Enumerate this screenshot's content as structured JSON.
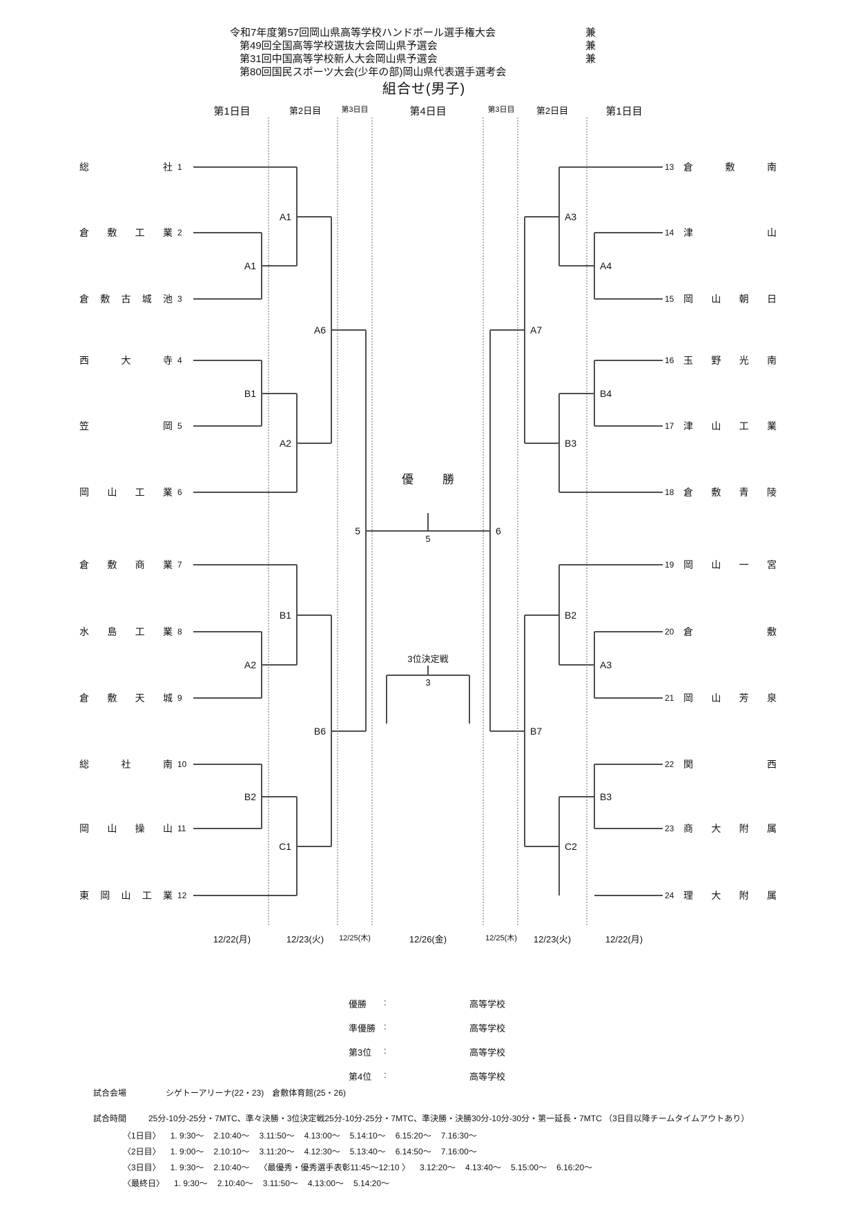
{
  "title": {
    "lines": [
      {
        "text": "令和7年度第57回岡山県高等学校ハンドボール選手権大会",
        "suffix": "兼"
      },
      {
        "text": "第49回全国高等学校選抜大会岡山県予選会",
        "suffix": "兼"
      },
      {
        "text": "第31回中国高等学校新人大会岡山県予選会",
        "suffix": "兼"
      },
      {
        "text": "第80回国民スポーツ大会(少年の部)岡山県代表選手選考会",
        "suffix": ""
      }
    ],
    "subtitle": "組合せ(男子)"
  },
  "round_headers": [
    "第1日目",
    "第2日目",
    "第3日目",
    "第4日目",
    "第3日目",
    "第2日目",
    "第1日目"
  ],
  "dates": [
    "12/22(月)",
    "12/23(火)",
    "12/25(木)",
    "12/26(金)",
    "12/25(木)",
    "12/23(火)",
    "12/22(月)"
  ],
  "teams": [
    {
      "no": "1",
      "name": "総社",
      "side": "L",
      "row": 0,
      "entry": 2
    },
    {
      "no": "2",
      "name": "倉敷工業",
      "side": "L",
      "row": 1,
      "entry": 1
    },
    {
      "no": "3",
      "name": "倉敷古城池",
      "side": "L",
      "row": 2,
      "entry": 1
    },
    {
      "no": "4",
      "name": "西大寺",
      "side": "L",
      "row": 3,
      "entry": 1
    },
    {
      "no": "5",
      "name": "笠岡",
      "side": "L",
      "row": 4,
      "entry": 1
    },
    {
      "no": "6",
      "name": "岡山工業",
      "side": "L",
      "row": 5,
      "entry": 2
    },
    {
      "no": "7",
      "name": "倉敷商業",
      "side": "L",
      "row": 6,
      "entry": 2
    },
    {
      "no": "8",
      "name": "水島工業",
      "side": "L",
      "row": 7,
      "entry": 1
    },
    {
      "no": "9",
      "name": "倉敷天城",
      "side": "L",
      "row": 8,
      "entry": 1
    },
    {
      "no": "10",
      "name": "総社南",
      "side": "L",
      "row": 9,
      "entry": 1
    },
    {
      "no": "11",
      "name": "岡山操山",
      "side": "L",
      "row": 10,
      "entry": 1
    },
    {
      "no": "12",
      "name": "東岡山工業",
      "side": "L",
      "row": 11,
      "entry": 2
    },
    {
      "no": "13",
      "name": "倉敷南",
      "side": "R",
      "row": 12,
      "entry": 2
    },
    {
      "no": "14",
      "name": "津山",
      "side": "R",
      "row": 13,
      "entry": 1
    },
    {
      "no": "15",
      "name": "岡山朝日",
      "side": "R",
      "row": 14,
      "entry": 1
    },
    {
      "no": "16",
      "name": "玉野光南",
      "side": "R",
      "row": 15,
      "entry": 1
    },
    {
      "no": "17",
      "name": "津山工業",
      "side": "R",
      "row": 16,
      "entry": 1
    },
    {
      "no": "18",
      "name": "倉敷青陵",
      "side": "R",
      "row": 17,
      "entry": 2
    },
    {
      "no": "19",
      "name": "岡山一宮",
      "side": "R",
      "row": 18,
      "entry": 2
    },
    {
      "no": "20",
      "name": "倉敷",
      "side": "R",
      "row": 19,
      "entry": 1
    },
    {
      "no": "21",
      "name": "岡山芳泉",
      "side": "R",
      "row": 20,
      "entry": 1
    },
    {
      "no": "22",
      "name": "関西",
      "side": "R",
      "row": 21,
      "entry": 1
    },
    {
      "no": "23",
      "name": "商大附属",
      "side": "R",
      "row": 22,
      "entry": 1
    },
    {
      "no": "24",
      "name": "理大附属",
      "side": "R",
      "row": 23,
      "entry": 1
    }
  ],
  "matches": [
    {
      "id": "L_A1_1",
      "label": "A1",
      "side": "L",
      "round": 1,
      "top": {
        "row": 1
      },
      "bot": {
        "row": 2
      }
    },
    {
      "id": "L_B1_1",
      "label": "B1",
      "side": "L",
      "round": 1,
      "top": {
        "row": 3
      },
      "bot": {
        "row": 4
      }
    },
    {
      "id": "L_A2_1",
      "label": "A2",
      "side": "L",
      "round": 1,
      "top": {
        "row": 7
      },
      "bot": {
        "row": 8
      }
    },
    {
      "id": "L_B2_1",
      "label": "B2",
      "side": "L",
      "round": 1,
      "top": {
        "row": 9
      },
      "bot": {
        "row": 10
      }
    },
    {
      "id": "L_A1_2",
      "label": "A1",
      "side": "L",
      "round": 2,
      "top": {
        "row": 0
      },
      "bot": {
        "match": "L_A1_1"
      }
    },
    {
      "id": "L_A2_2",
      "label": "A2",
      "side": "L",
      "round": 2,
      "top": {
        "match": "L_B1_1"
      },
      "bot": {
        "row": 5
      }
    },
    {
      "id": "L_B1_2",
      "label": "B1",
      "side": "L",
      "round": 2,
      "top": {
        "row": 6
      },
      "bot": {
        "match": "L_A2_1"
      }
    },
    {
      "id": "L_C1_2",
      "label": "C1",
      "side": "L",
      "round": 2,
      "top": {
        "match": "L_B2_1"
      },
      "bot": {
        "row": 11
      }
    },
    {
      "id": "L_A6_3",
      "label": "A6",
      "side": "L",
      "round": 3,
      "top": {
        "match": "L_A1_2"
      },
      "bot": {
        "match": "L_A2_2"
      }
    },
    {
      "id": "L_B6_3",
      "label": "B6",
      "side": "L",
      "round": 3,
      "top": {
        "match": "L_B1_2"
      },
      "bot": {
        "match": "L_C1_2"
      }
    },
    {
      "id": "L_SF",
      "label": "5",
      "side": "L",
      "round": 4,
      "top": {
        "match": "L_A6_3"
      },
      "bot": {
        "match": "L_B6_3"
      }
    },
    {
      "id": "R_A4_1",
      "label": "A4",
      "side": "R",
      "round": 1,
      "top": {
        "row": 13
      },
      "bot": {
        "row": 14
      }
    },
    {
      "id": "R_B4_1",
      "label": "B4",
      "side": "R",
      "round": 1,
      "top": {
        "row": 15
      },
      "bot": {
        "row": 16
      }
    },
    {
      "id": "R_A3_1",
      "label": "A3",
      "side": "R",
      "round": 1,
      "top": {
        "row": 19
      },
      "bot": {
        "row": 20
      }
    },
    {
      "id": "R_B3_1",
      "label": "B3",
      "side": "R",
      "round": 1,
      "top": {
        "row": 21
      },
      "bot": {
        "row": 22
      }
    },
    {
      "id": "R_A3_2",
      "label": "A3",
      "side": "R",
      "round": 2,
      "top": {
        "row": 12
      },
      "bot": {
        "match": "R_A4_1"
      }
    },
    {
      "id": "R_B3_2",
      "label": "B3",
      "side": "R",
      "round": 2,
      "top": {
        "match": "R_B4_1"
      },
      "bot": {
        "row": 17
      }
    },
    {
      "id": "R_B2_2",
      "label": "B2",
      "side": "R",
      "round": 2,
      "top": {
        "row": 18
      },
      "bot": {
        "match": "R_A3_1"
      }
    },
    {
      "id": "R_C2_2",
      "label": "C2",
      "side": "R",
      "round": 2,
      "top": {
        "match": "R_B3_1"
      },
      "bot": {
        "row": 23
      }
    },
    {
      "id": "R_A7_3",
      "label": "A7",
      "side": "R",
      "round": 3,
      "top": {
        "match": "R_A3_2"
      },
      "bot": {
        "match": "R_B3_2"
      }
    },
    {
      "id": "R_B7_3",
      "label": "B7",
      "side": "R",
      "round": 3,
      "top": {
        "match": "R_B2_2"
      },
      "bot": {
        "match": "R_C2_2"
      }
    },
    {
      "id": "R_SF",
      "label": "6",
      "side": "R",
      "round": 4,
      "top": {
        "match": "R_A7_3"
      },
      "bot": {
        "match": "R_B7_3"
      }
    }
  ],
  "final": {
    "champion_label": "優勝",
    "left_match_no": "5",
    "right_match_no": "6",
    "final_match_no": "5"
  },
  "third_place": {
    "label": "3位決定戦",
    "match_no": "3"
  },
  "results": [
    {
      "label": "優勝",
      "colon": ":",
      "value": "高等学校"
    },
    {
      "label": "準優勝",
      "colon": ":",
      "value": "高等学校"
    },
    {
      "label": "第3位",
      "colon": ":",
      "value": "高等学校"
    },
    {
      "label": "第4位",
      "colon": ":",
      "value": "高等学校"
    }
  ],
  "footer": {
    "venue_label": "試合会場",
    "venue": "シゲトーアリーナ(22・23)　倉敷体育館(25・26)",
    "time_label": "試合時間",
    "time_rule": "25分-10分-25分・7MTC、準々決勝・3位決定戦25分-10分-25分・7MTC、準決勝・決勝30分-10分-30分・第一延長・7MTC （3日目以降チームタイムアウトあり）",
    "schedule": [
      {
        "label": "〈1日目〉",
        "entries": [
          "1. 9:30～",
          "2.10:40～",
          "3.11:50～",
          "4.13:00～",
          "5.14:10～",
          "6.15:20～",
          "7.16:30～"
        ]
      },
      {
        "label": "〈2日目〉",
        "entries": [
          "1. 9:00～",
          "2.10:10～",
          "3.11:20～",
          "4.12:30～",
          "5.13:40～",
          "6.14:50～",
          "7.16:00～"
        ]
      },
      {
        "label": "〈3日目〉",
        "entries": [
          "1. 9:30～",
          "2.10:40～",
          "〈最優秀・優秀選手表彰11:45～12:10 〉",
          "3.12:20～",
          "4.13:40～",
          "5.15:00～",
          "6.16:20～"
        ]
      },
      {
        "label": "〈最終日〉",
        "entries": [
          "1. 9:30～",
          "2.10:40～",
          "3.11:50～",
          "4.13:00～",
          "5.14:20～"
        ]
      }
    ]
  },
  "colors": {
    "line": "#4d4d4d",
    "separator": "#b4b4b4",
    "text": "#111111"
  }
}
